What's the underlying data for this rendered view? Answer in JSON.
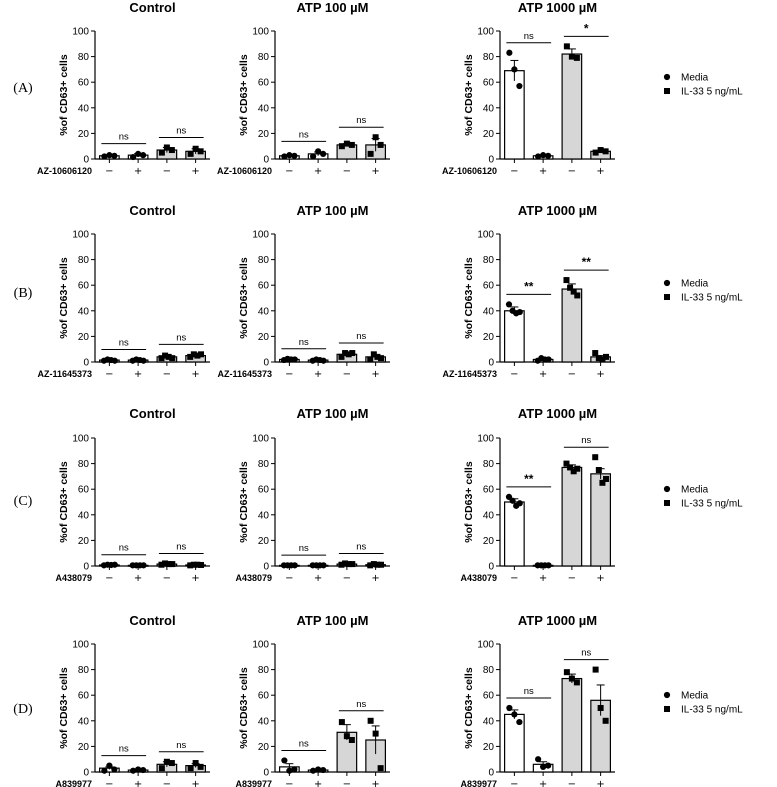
{
  "colors": {
    "media_bar": "#ffffff",
    "il33_bar": "#d6d6d6",
    "line": "#000000"
  },
  "legend": {
    "position": "right",
    "items": [
      {
        "label": "Media",
        "marker": "circle"
      },
      {
        "label": "IL-33 5 ng/mL",
        "marker": "square"
      }
    ]
  },
  "rows": [
    {
      "label": "(A)",
      "treatment": "AZ-10606120"
    },
    {
      "label": "(B)",
      "treatment": "AZ-11645373"
    },
    {
      "label": "(C)",
      "treatment": "A438079"
    },
    {
      "label": "(D)",
      "treatment": "A839977"
    }
  ],
  "columns": [
    "Control",
    "ATP 100 µM",
    "ATP 1000 µM"
  ],
  "sign_labels": [
    "−",
    "+",
    "−",
    "+"
  ],
  "chart_data": [
    {
      "type": "bar",
      "row": "(A)",
      "title": "Control",
      "ylabel": "%of CD63+ cells",
      "ylim": [
        0,
        100
      ],
      "yticks": [
        0,
        20,
        40,
        60,
        80,
        100
      ],
      "xlabel": "AZ-10606120",
      "categories": [
        "Media −",
        "Media +",
        "IL-33 −",
        "IL-33 +"
      ],
      "values": [
        2.5,
        3,
        7,
        6
      ],
      "errors": [
        0.3,
        1.2,
        2,
        2
      ],
      "points": [
        [
          2,
          3,
          2.5
        ],
        [
          1.5,
          4,
          3
        ],
        [
          5,
          9,
          7
        ],
        [
          4,
          8,
          6
        ]
      ],
      "significance": [
        "ns",
        "ns"
      ]
    },
    {
      "type": "bar",
      "row": "(A)",
      "title": "ATP 100 µM",
      "ylabel": "%of CD63+ cells",
      "ylim": [
        0,
        100
      ],
      "yticks": [
        0,
        20,
        40,
        60,
        80,
        100
      ],
      "xlabel": "AZ-10606120",
      "categories": [
        "Media −",
        "Media +",
        "IL-33 −",
        "IL-33 +"
      ],
      "values": [
        2.5,
        4,
        11,
        11
      ],
      "errors": [
        0.4,
        1.5,
        1,
        5
      ],
      "points": [
        [
          2,
          3,
          2.5
        ],
        [
          2,
          6,
          4
        ],
        [
          10,
          12,
          11
        ],
        [
          4,
          17,
          11
        ]
      ],
      "significance": [
        "ns",
        "ns"
      ]
    },
    {
      "type": "bar",
      "row": "(A)",
      "title": "ATP 1000 µM",
      "ylabel": "%of CD63+ cells",
      "ylim": [
        0,
        100
      ],
      "yticks": [
        0,
        20,
        40,
        60,
        80,
        100
      ],
      "xlabel": "AZ-10606120",
      "categories": [
        "Media −",
        "Media +",
        "IL-33 −",
        "IL-33 +"
      ],
      "values": [
        69,
        2.5,
        82,
        6
      ],
      "errors": [
        8,
        0.5,
        4,
        1
      ],
      "points": [
        [
          83,
          70,
          57
        ],
        [
          2,
          3,
          2.5
        ],
        [
          88,
          80,
          79
        ],
        [
          5,
          7,
          6
        ]
      ],
      "significance": [
        "ns",
        "*"
      ]
    },
    {
      "type": "bar",
      "row": "(B)",
      "title": "Control",
      "ylabel": "%of CD63+ cells",
      "ylim": [
        0,
        100
      ],
      "yticks": [
        0,
        20,
        40,
        60,
        80,
        100
      ],
      "xlabel": "AZ-11645373",
      "categories": [
        "Media −",
        "Media +",
        "IL-33 −",
        "IL-33 +"
      ],
      "values": [
        1.5,
        1.5,
        4,
        5
      ],
      "errors": [
        0.3,
        0.3,
        1,
        1
      ],
      "points": [
        [
          1,
          2,
          1.5,
          1
        ],
        [
          1,
          2,
          1.5,
          1
        ],
        [
          3,
          5,
          4,
          3
        ],
        [
          4,
          6,
          5,
          6
        ]
      ],
      "significance": [
        "ns",
        "ns"
      ]
    },
    {
      "type": "bar",
      "row": "(B)",
      "title": "ATP 100 µM",
      "ylabel": "%of CD63+ cells",
      "ylim": [
        0,
        100
      ],
      "yticks": [
        0,
        20,
        40,
        60,
        80,
        100
      ],
      "xlabel": "AZ-11645373",
      "categories": [
        "Media −",
        "Media +",
        "IL-33 −",
        "IL-33 +"
      ],
      "values": [
        2,
        1.5,
        6,
        4
      ],
      "errors": [
        0.4,
        0.3,
        1,
        1
      ],
      "points": [
        [
          1.5,
          2.5,
          2,
          2
        ],
        [
          1,
          2,
          1.5,
          1
        ],
        [
          4,
          7,
          6,
          7
        ],
        [
          2,
          6,
          4,
          3
        ]
      ],
      "significance": [
        "ns",
        "ns"
      ]
    },
    {
      "type": "bar",
      "row": "(B)",
      "title": "ATP 1000 µM",
      "ylabel": "%of CD63+ cells",
      "ylim": [
        0,
        100
      ],
      "yticks": [
        0,
        20,
        40,
        60,
        80,
        100
      ],
      "xlabel": "AZ-11645373",
      "categories": [
        "Media −",
        "Media +",
        "IL-33 −",
        "IL-33 +"
      ],
      "values": [
        40,
        2,
        57,
        4
      ],
      "errors": [
        3,
        0.5,
        4,
        1
      ],
      "points": [
        [
          45,
          40,
          38,
          39
        ],
        [
          1,
          3,
          2,
          2
        ],
        [
          64,
          58,
          55,
          52
        ],
        [
          7,
          3,
          2,
          4
        ]
      ],
      "significance": [
        "**",
        "**"
      ]
    },
    {
      "type": "bar",
      "row": "(C)",
      "title": "Control",
      "ylabel": "%of CD63+ cells",
      "ylim": [
        0,
        100
      ],
      "yticks": [
        0,
        20,
        40,
        60,
        80,
        100
      ],
      "xlabel": "A438079",
      "categories": [
        "Media −",
        "Media +",
        "IL-33 −",
        "IL-33 +"
      ],
      "values": [
        0.8,
        0.5,
        1.5,
        0.8
      ],
      "errors": [
        0.2,
        0.2,
        0.3,
        0.2
      ],
      "points": [
        [
          0.5,
          1,
          0.8,
          1
        ],
        [
          0.5,
          0.5,
          0.5,
          0.5
        ],
        [
          1,
          2,
          1.5,
          1.5
        ],
        [
          0.5,
          1,
          1,
          0.8
        ]
      ],
      "significance": [
        "ns",
        "ns"
      ]
    },
    {
      "type": "bar",
      "row": "(C)",
      "title": "ATP 100 µM",
      "ylabel": "%of CD63+ cells",
      "ylim": [
        0,
        100
      ],
      "yticks": [
        0,
        20,
        40,
        60,
        80,
        100
      ],
      "xlabel": "A438079",
      "categories": [
        "Media −",
        "Media +",
        "IL-33 −",
        "IL-33 +"
      ],
      "values": [
        0.5,
        0.5,
        1.5,
        1
      ],
      "errors": [
        0.2,
        0.2,
        0.3,
        0.3
      ],
      "points": [
        [
          0.5,
          0.5,
          0.5,
          0.5
        ],
        [
          0.5,
          0.5,
          0.5,
          0.5
        ],
        [
          1,
          2,
          1.5,
          1.5
        ],
        [
          0.5,
          1.5,
          1,
          1
        ]
      ],
      "significance": [
        "ns",
        "ns"
      ]
    },
    {
      "type": "bar",
      "row": "(C)",
      "title": "ATP 1000 µM",
      "ylabel": "%of CD63+ cells",
      "ylim": [
        0,
        100
      ],
      "yticks": [
        0,
        20,
        40,
        60,
        80,
        100
      ],
      "xlabel": "A438079",
      "categories": [
        "Media −",
        "Media +",
        "IL-33 −",
        "IL-33 +"
      ],
      "values": [
        50,
        0.5,
        77,
        72
      ],
      "errors": [
        2.5,
        0.2,
        2,
        4
      ],
      "points": [
        [
          54,
          51,
          47,
          49
        ],
        [
          0.5,
          0.5,
          0.5,
          0.5
        ],
        [
          80,
          77,
          74,
          76
        ],
        [
          85,
          75,
          65,
          68
        ]
      ],
      "significance": [
        "**",
        "ns"
      ]
    },
    {
      "type": "bar",
      "row": "(D)",
      "title": "Control",
      "ylabel": "%of CD63+ cells",
      "ylim": [
        0,
        100
      ],
      "yticks": [
        0,
        20,
        40,
        60,
        80,
        100
      ],
      "xlabel": "A839977",
      "categories": [
        "Media −",
        "Media +",
        "IL-33 −",
        "IL-33 +"
      ],
      "values": [
        3,
        1.5,
        6,
        5
      ],
      "errors": [
        1,
        0.3,
        2,
        1.5
      ],
      "points": [
        [
          1,
          5,
          2
        ],
        [
          1,
          2,
          1.5
        ],
        [
          3,
          8,
          7
        ],
        [
          3,
          7,
          4
        ]
      ],
      "significance": [
        "ns",
        "ns"
      ]
    },
    {
      "type": "bar",
      "row": "(D)",
      "title": "ATP 100 µM",
      "ylabel": "%of CD63+ cells",
      "ylim": [
        0,
        100
      ],
      "yticks": [
        0,
        20,
        40,
        60,
        80,
        100
      ],
      "xlabel": "A839977",
      "categories": [
        "Media −",
        "Media +",
        "IL-33 −",
        "IL-33 +"
      ],
      "values": [
        4,
        1.5,
        31,
        25
      ],
      "errors": [
        2.5,
        0.5,
        6,
        11
      ],
      "points": [
        [
          9,
          1,
          2
        ],
        [
          1,
          2,
          1.5
        ],
        [
          39,
          28,
          25
        ],
        [
          40,
          30,
          3
        ]
      ],
      "significance": [
        "ns",
        "ns"
      ]
    },
    {
      "type": "bar",
      "row": "(D)",
      "title": "ATP 1000 µM",
      "ylabel": "%of CD63+ cells",
      "ylim": [
        0,
        100
      ],
      "yticks": [
        0,
        20,
        40,
        60,
        80,
        100
      ],
      "xlabel": "A839977",
      "categories": [
        "Media −",
        "Media +",
        "IL-33 −",
        "IL-33 +"
      ],
      "values": [
        45,
        6,
        73,
        56
      ],
      "errors": [
        3.5,
        2,
        3.5,
        12
      ],
      "points": [
        [
          50,
          45,
          39
        ],
        [
          10,
          4,
          5
        ],
        [
          78,
          73,
          70
        ],
        [
          80,
          50,
          40
        ]
      ],
      "significance": [
        "ns",
        "ns"
      ]
    }
  ]
}
